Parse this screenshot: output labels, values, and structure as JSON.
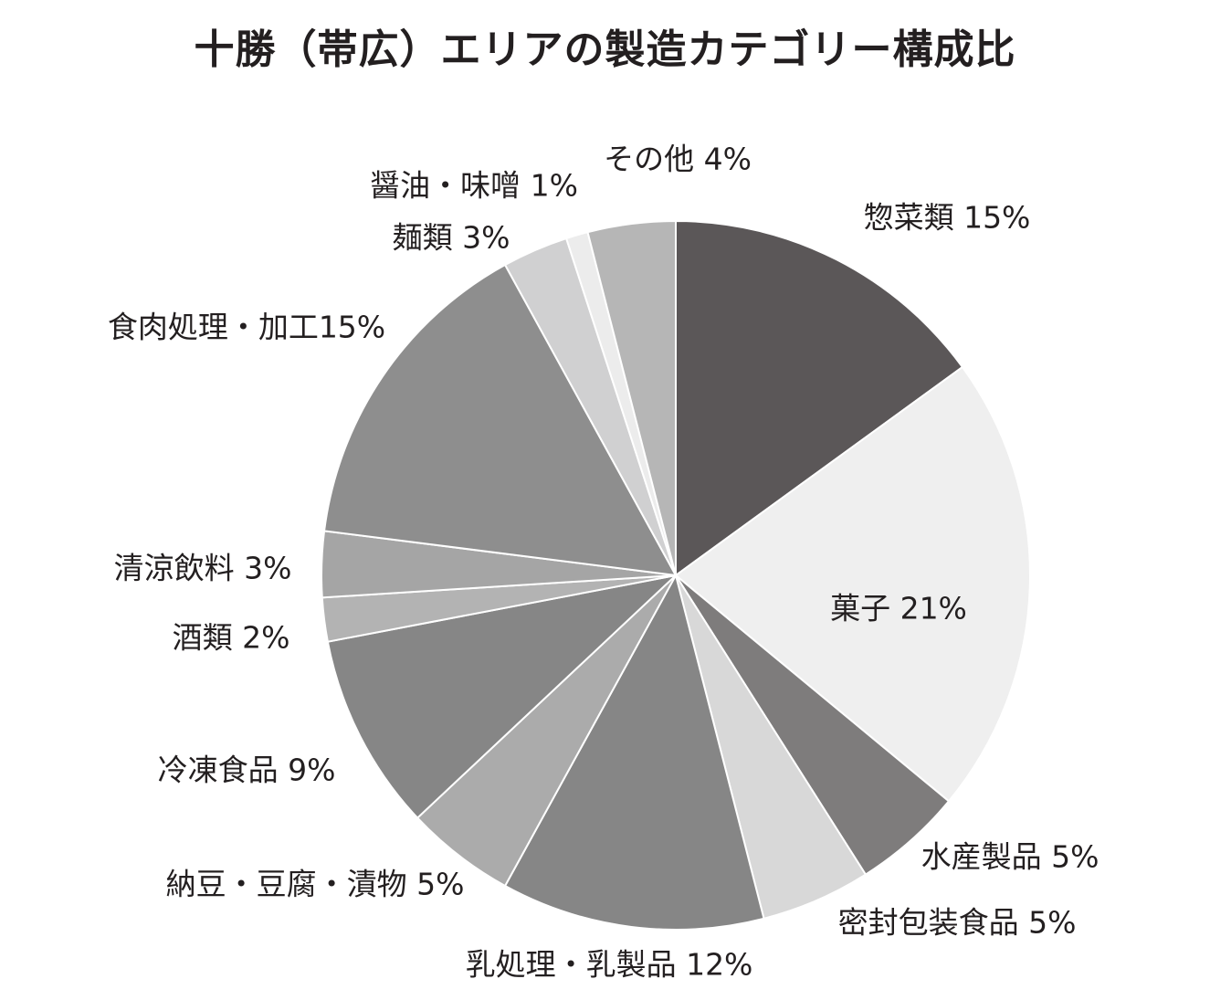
{
  "chart_data": {
    "type": "pie",
    "title": "十勝（帯広）エリアの製造カテゴリー構成比",
    "start_angle_deg": 0,
    "direction": "clockwise",
    "slices": [
      {
        "name": "惣菜類",
        "label": "惣菜類 15%",
        "value": 15,
        "color": "#5b5758"
      },
      {
        "name": "菓子",
        "label": "菓子 21%",
        "value": 21,
        "color": "#efefef"
      },
      {
        "name": "水産製品",
        "label": "水産製品 5%",
        "value": 5,
        "color": "#7e7c7c"
      },
      {
        "name": "密封包装食品",
        "label": "密封包装食品 5%",
        "value": 5,
        "color": "#d8d8d8"
      },
      {
        "name": "乳処理・乳製品",
        "label": "乳処理・乳製品 12%",
        "value": 12,
        "color": "#868686"
      },
      {
        "name": "納豆・豆腐・漬物",
        "label": "納豆・豆腐・漬物 5%",
        "value": 5,
        "color": "#ababab"
      },
      {
        "name": "冷凍食品",
        "label": "冷凍食品 9%",
        "value": 9,
        "color": "#868686"
      },
      {
        "name": "酒類",
        "label": "酒類 2%",
        "value": 2,
        "color": "#b3b3b3"
      },
      {
        "name": "清涼飲料",
        "label": "清涼飲料 3%",
        "value": 3,
        "color": "#a5a5a5"
      },
      {
        "name": "食肉処理・加工",
        "label": "食肉処理・加工15%",
        "value": 15,
        "color": "#8e8e8e"
      },
      {
        "name": "麺類",
        "label": "麺類 3%",
        "value": 3,
        "color": "#d0d0d1"
      },
      {
        "name": "醤油・味噌",
        "label": "醤油・味噌 1%",
        "value": 1,
        "color": "#ececec"
      },
      {
        "name": "その他",
        "label": "その他 4%",
        "value": 4,
        "color": "#b6b6b6"
      }
    ]
  }
}
